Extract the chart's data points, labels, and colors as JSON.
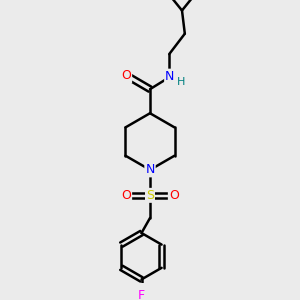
{
  "background_color": "#ebebeb",
  "bond_color": "#000000",
  "atom_colors": {
    "O": "#ff0000",
    "N": "#0000ff",
    "S": "#cccc00",
    "F": "#ff00ff",
    "H": "#008080",
    "C": "#000000"
  },
  "figsize": [
    3.0,
    3.0
  ],
  "dpi": 100
}
